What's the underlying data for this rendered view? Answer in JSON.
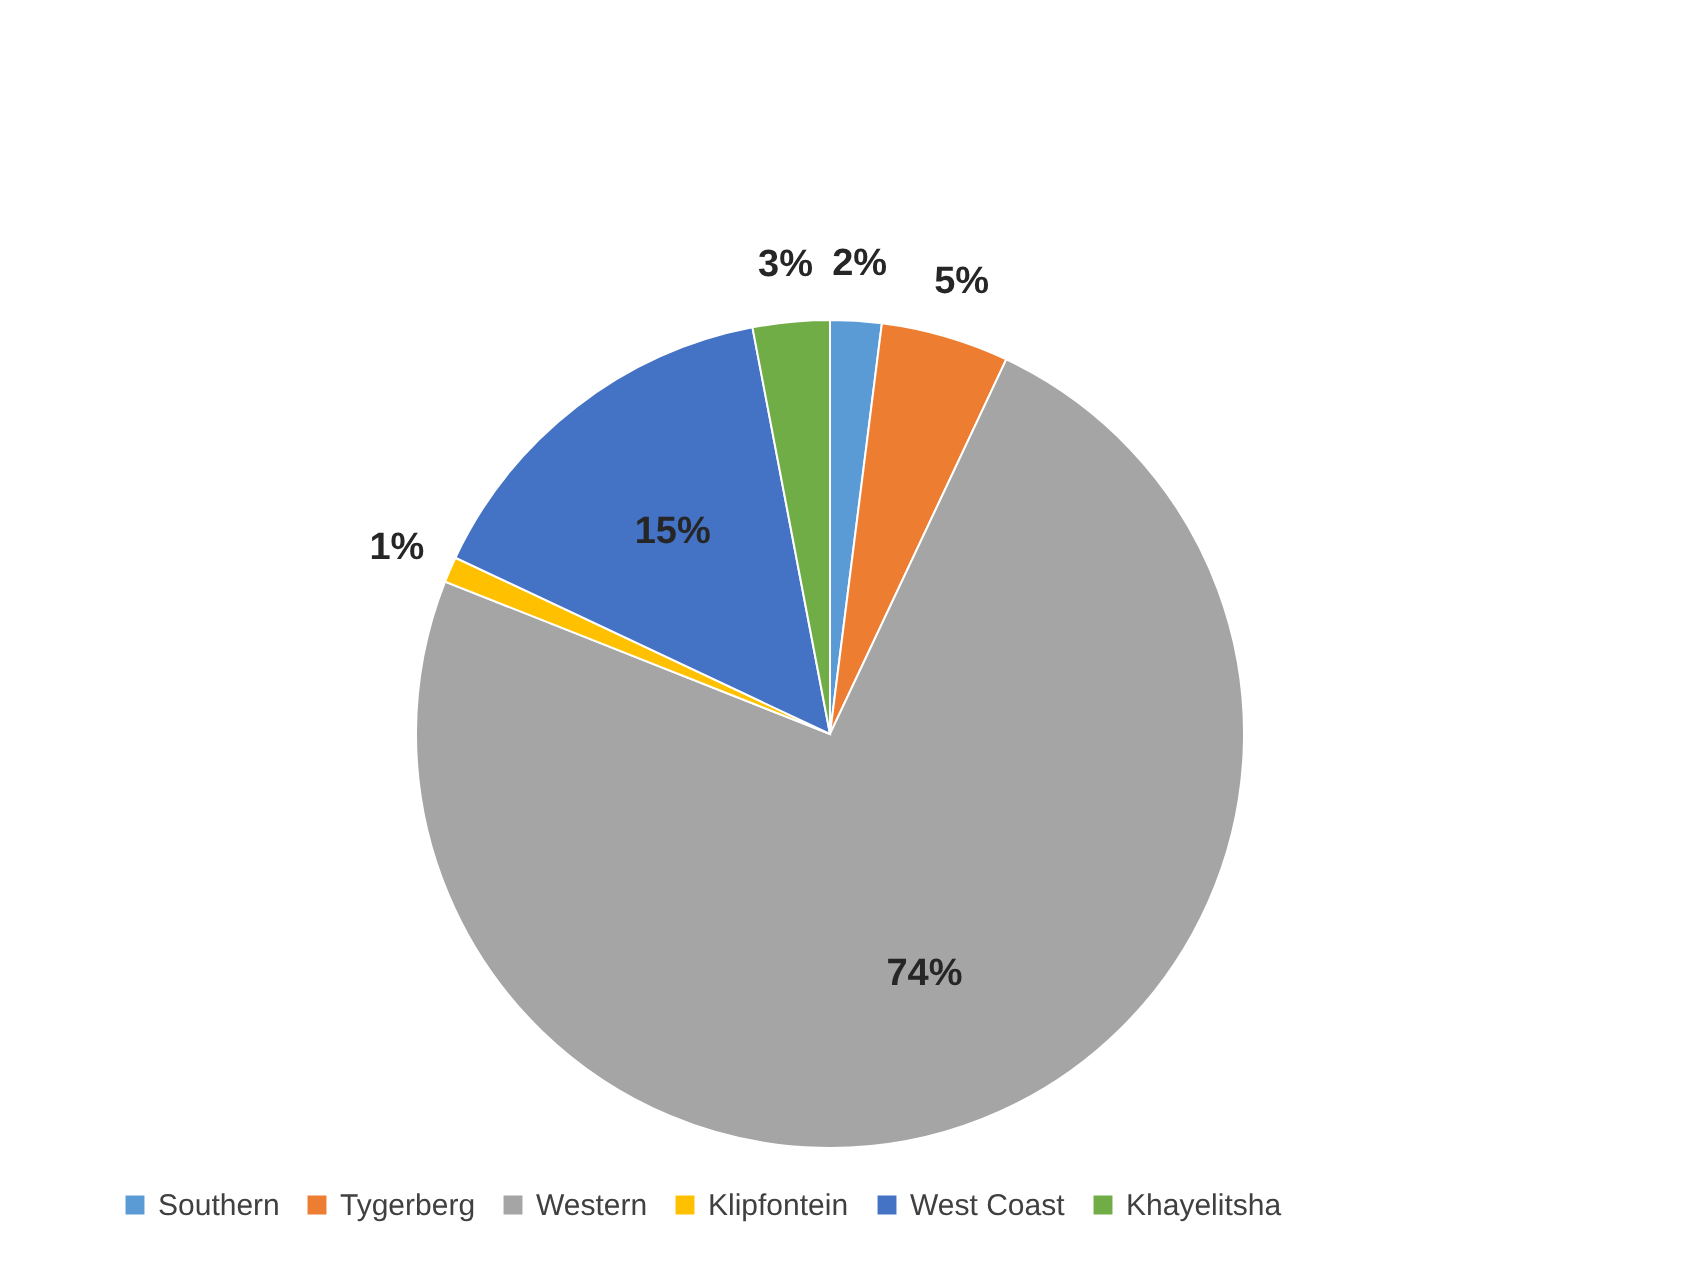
{
  "chart_data": {
    "type": "pie",
    "categories": [
      "Southern",
      "Tygerberg",
      "Western",
      "Klipfontein",
      "West Coast",
      "Khayelitsha"
    ],
    "values": [
      2,
      5,
      74,
      1,
      15,
      3
    ],
    "colors": [
      "#5b9bd5",
      "#ed7d31",
      "#a5a5a5",
      "#ffc000",
      "#4472c4",
      "#70ad47"
    ],
    "value_labels": [
      "2%",
      "5%",
      "74%",
      "1%",
      "15%",
      "3%"
    ],
    "legend": "bottom"
  }
}
